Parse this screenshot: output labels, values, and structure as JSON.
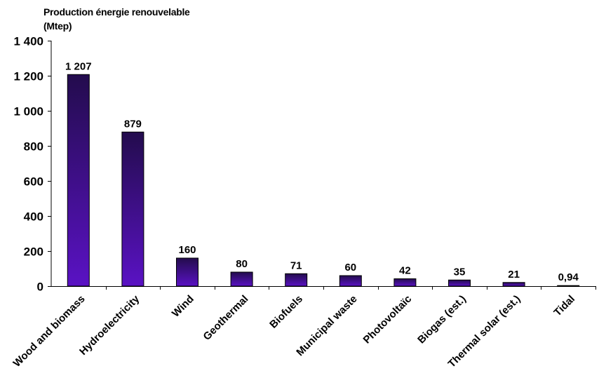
{
  "chart_data": {
    "type": "bar",
    "title_lines": [
      "Production énergie renouvelable",
      "(Mtep)"
    ],
    "categories": [
      "Wood and biomass",
      "Hydroelectricity",
      "Wind",
      "Geothermal",
      "Biofuels",
      "Municipal waste",
      "Photovoltaïc",
      "Biogas (est.)",
      "Thermal solar (est.)",
      "Tidal"
    ],
    "values": [
      1207,
      879,
      160,
      80,
      71,
      60,
      42,
      35,
      21,
      0.94
    ],
    "value_labels": [
      "1 207",
      "879",
      "160",
      "80",
      "71",
      "60",
      "42",
      "35",
      "21",
      "0,94"
    ],
    "ylim": [
      0,
      1400
    ],
    "yticks": [
      0,
      200,
      400,
      600,
      800,
      1000,
      1200,
      1400
    ],
    "ytick_labels": [
      "0",
      "200",
      "400",
      "600",
      "800",
      "1 000",
      "1 200",
      "1 400"
    ],
    "grid": false,
    "bar_color_top": "#230c4d",
    "bar_color_bottom": "#5a12c4"
  }
}
